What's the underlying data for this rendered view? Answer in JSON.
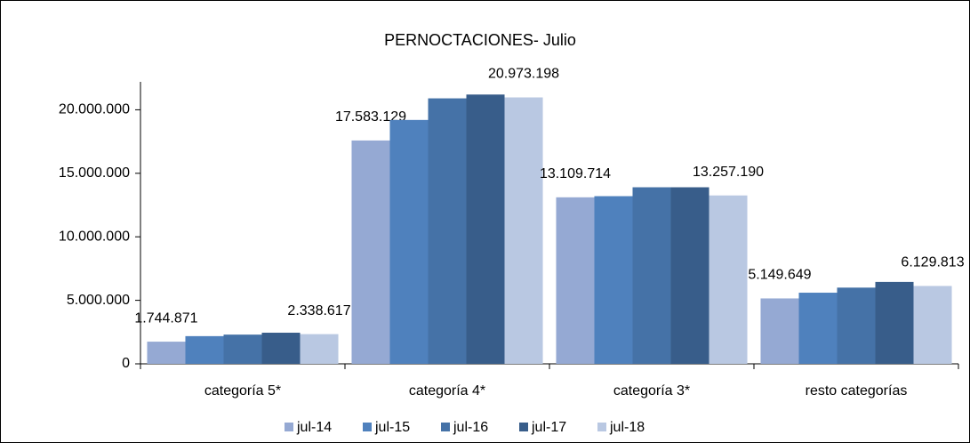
{
  "chart_data": {
    "type": "bar",
    "title": "PERNOCTACIONES- Julio",
    "categories": [
      "categoría 5*",
      "categoría 4*",
      "categoría 3*",
      "resto categorías"
    ],
    "series": [
      {
        "name": "jul-14",
        "color": "#95a9d3",
        "values": [
          1744871,
          17583129,
          13109714,
          5149649
        ],
        "value_labels": [
          "1.744.871",
          "17.583.129",
          "13.109.714",
          "5.149.649"
        ]
      },
      {
        "name": "jul-15",
        "color": "#4f81bd",
        "values": [
          2180000,
          19200000,
          13200000,
          5600000
        ]
      },
      {
        "name": "jul-16",
        "color": "#4572a7",
        "values": [
          2300000,
          20900000,
          13900000,
          6000000
        ]
      },
      {
        "name": "jul-17",
        "color": "#385d8a",
        "values": [
          2450000,
          21200000,
          13900000,
          6450000
        ]
      },
      {
        "name": "jul-18",
        "color": "#b9c8e2",
        "values": [
          2338617,
          20973198,
          13257190,
          6129813
        ],
        "value_labels": [
          "2.338.617",
          "20.973.198",
          "13.257.190",
          "6.129.813"
        ]
      }
    ],
    "ylim": [
      0,
      22200000
    ],
    "yticks": [
      0,
      {
        "value": 5000000,
        "label": "5.000.000"
      },
      {
        "value": 10000000,
        "label": "10.000.000"
      },
      {
        "value": 15000000,
        "label": "15.000.000"
      },
      {
        "value": 20000000,
        "label": "20.000.000"
      }
    ],
    "grid": false,
    "legend": "bottom"
  }
}
